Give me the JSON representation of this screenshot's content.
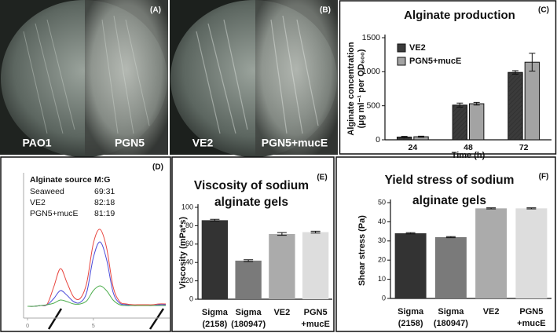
{
  "photos": [
    {
      "letter": "(A)",
      "labels": [
        "PAO1",
        "PGN5"
      ]
    },
    {
      "letter": "(B)",
      "labels": [
        "VE2",
        "PGN5+mucE"
      ]
    }
  ],
  "chart_data": [
    {
      "type": "bar",
      "letter": "(C)",
      "title": "Alginate production",
      "y_label": [
        "Alginate concentration",
        "(μg ml⁻¹ per OD₆₀₀)"
      ],
      "x_label": "Time (h)",
      "categories": [
        "24",
        "48",
        "72"
      ],
      "series": [
        {
          "name": "VE2",
          "color": "#3b3b3b",
          "values": [
            40,
            510,
            990
          ],
          "errors": [
            10,
            30,
            25
          ]
        },
        {
          "name": "PGN5+mucE",
          "color": "#a3a3a3",
          "values": [
            45,
            530,
            1140
          ],
          "errors": [
            8,
            20,
            130
          ]
        }
      ],
      "ylim": [
        0,
        1500
      ],
      "yticks": [
        0,
        500,
        1000,
        1500
      ],
      "legend": "upper-left"
    },
    {
      "type": "line",
      "letter": "(D)",
      "table": {
        "header": [
          "Alginate source",
          "M:G"
        ],
        "rows": [
          [
            "Seaweed",
            "69:31"
          ],
          [
            "VE2",
            "82:18"
          ],
          [
            "PGN5+mucE",
            "81:19"
          ]
        ]
      },
      "x": [
        0,
        0.5,
        1,
        1.5,
        2,
        2.5,
        3,
        3.5,
        4,
        4.5,
        5,
        5.5,
        6,
        6.5,
        7,
        7.5,
        8,
        8.5,
        9,
        9.5,
        10,
        10.5
      ],
      "series": [
        {
          "color": "#e8463f",
          "values": [
            0,
            0,
            1,
            3,
            25,
            48,
            30,
            12,
            10,
            30,
            80,
            98,
            75,
            25,
            6,
            3,
            2,
            2,
            2,
            2,
            3,
            3
          ]
        },
        {
          "color": "#4a4ad8",
          "values": [
            0,
            0,
            1,
            2,
            10,
            20,
            14,
            6,
            5,
            18,
            62,
            82,
            60,
            18,
            4,
            2,
            1,
            1,
            1,
            1,
            2,
            2
          ]
        },
        {
          "color": "#4fae4f",
          "values": [
            0,
            0,
            1,
            2,
            4,
            8,
            6,
            3,
            3,
            7,
            20,
            26,
            20,
            8,
            2,
            1,
            1,
            1,
            1,
            1,
            1,
            1
          ]
        }
      ],
      "xlim": [
        -0.3,
        10.8
      ],
      "xticks": [
        0,
        5
      ],
      "ylim": [
        -15,
        140
      ]
    },
    {
      "type": "bar",
      "letter": "(E)",
      "title": [
        "Viscosity of sodium",
        "alginate gels"
      ],
      "y_label": "Viscosity (mPa*s)",
      "categories": [
        [
          "Sigma",
          "(2158)"
        ],
        [
          "Sigma",
          "(180947)"
        ],
        [
          "VE2"
        ],
        [
          "PGN5",
          "+mucE"
        ]
      ],
      "colors": [
        "#333333",
        "#7a7a7a",
        "#ababab",
        "#dddddd"
      ],
      "values": [
        86,
        42,
        71,
        73
      ],
      "errors": [
        1,
        1,
        1.5,
        1
      ],
      "ylim": [
        0,
        100
      ],
      "yticks": [
        0,
        20,
        40,
        60,
        80,
        100
      ]
    },
    {
      "type": "bar",
      "letter": "(F)",
      "title": [
        "Yield stress of sodium",
        "alginate gels"
      ],
      "y_label": "Shear stress (Pa)",
      "categories": [
        [
          "Sigma",
          "(2158)"
        ],
        [
          "Sigma",
          "(180947)"
        ],
        [
          "VE2"
        ],
        [
          "PGN5",
          "+mucE"
        ]
      ],
      "colors": [
        "#333333",
        "#7a7a7a",
        "#ababab",
        "#dddddd"
      ],
      "values": [
        34,
        32,
        47,
        47
      ],
      "errors": [
        0.3,
        0.3,
        0.3,
        0.3
      ],
      "ylim": [
        0,
        50
      ],
      "yticks": [
        0,
        10,
        20,
        30,
        40,
        50
      ]
    }
  ]
}
